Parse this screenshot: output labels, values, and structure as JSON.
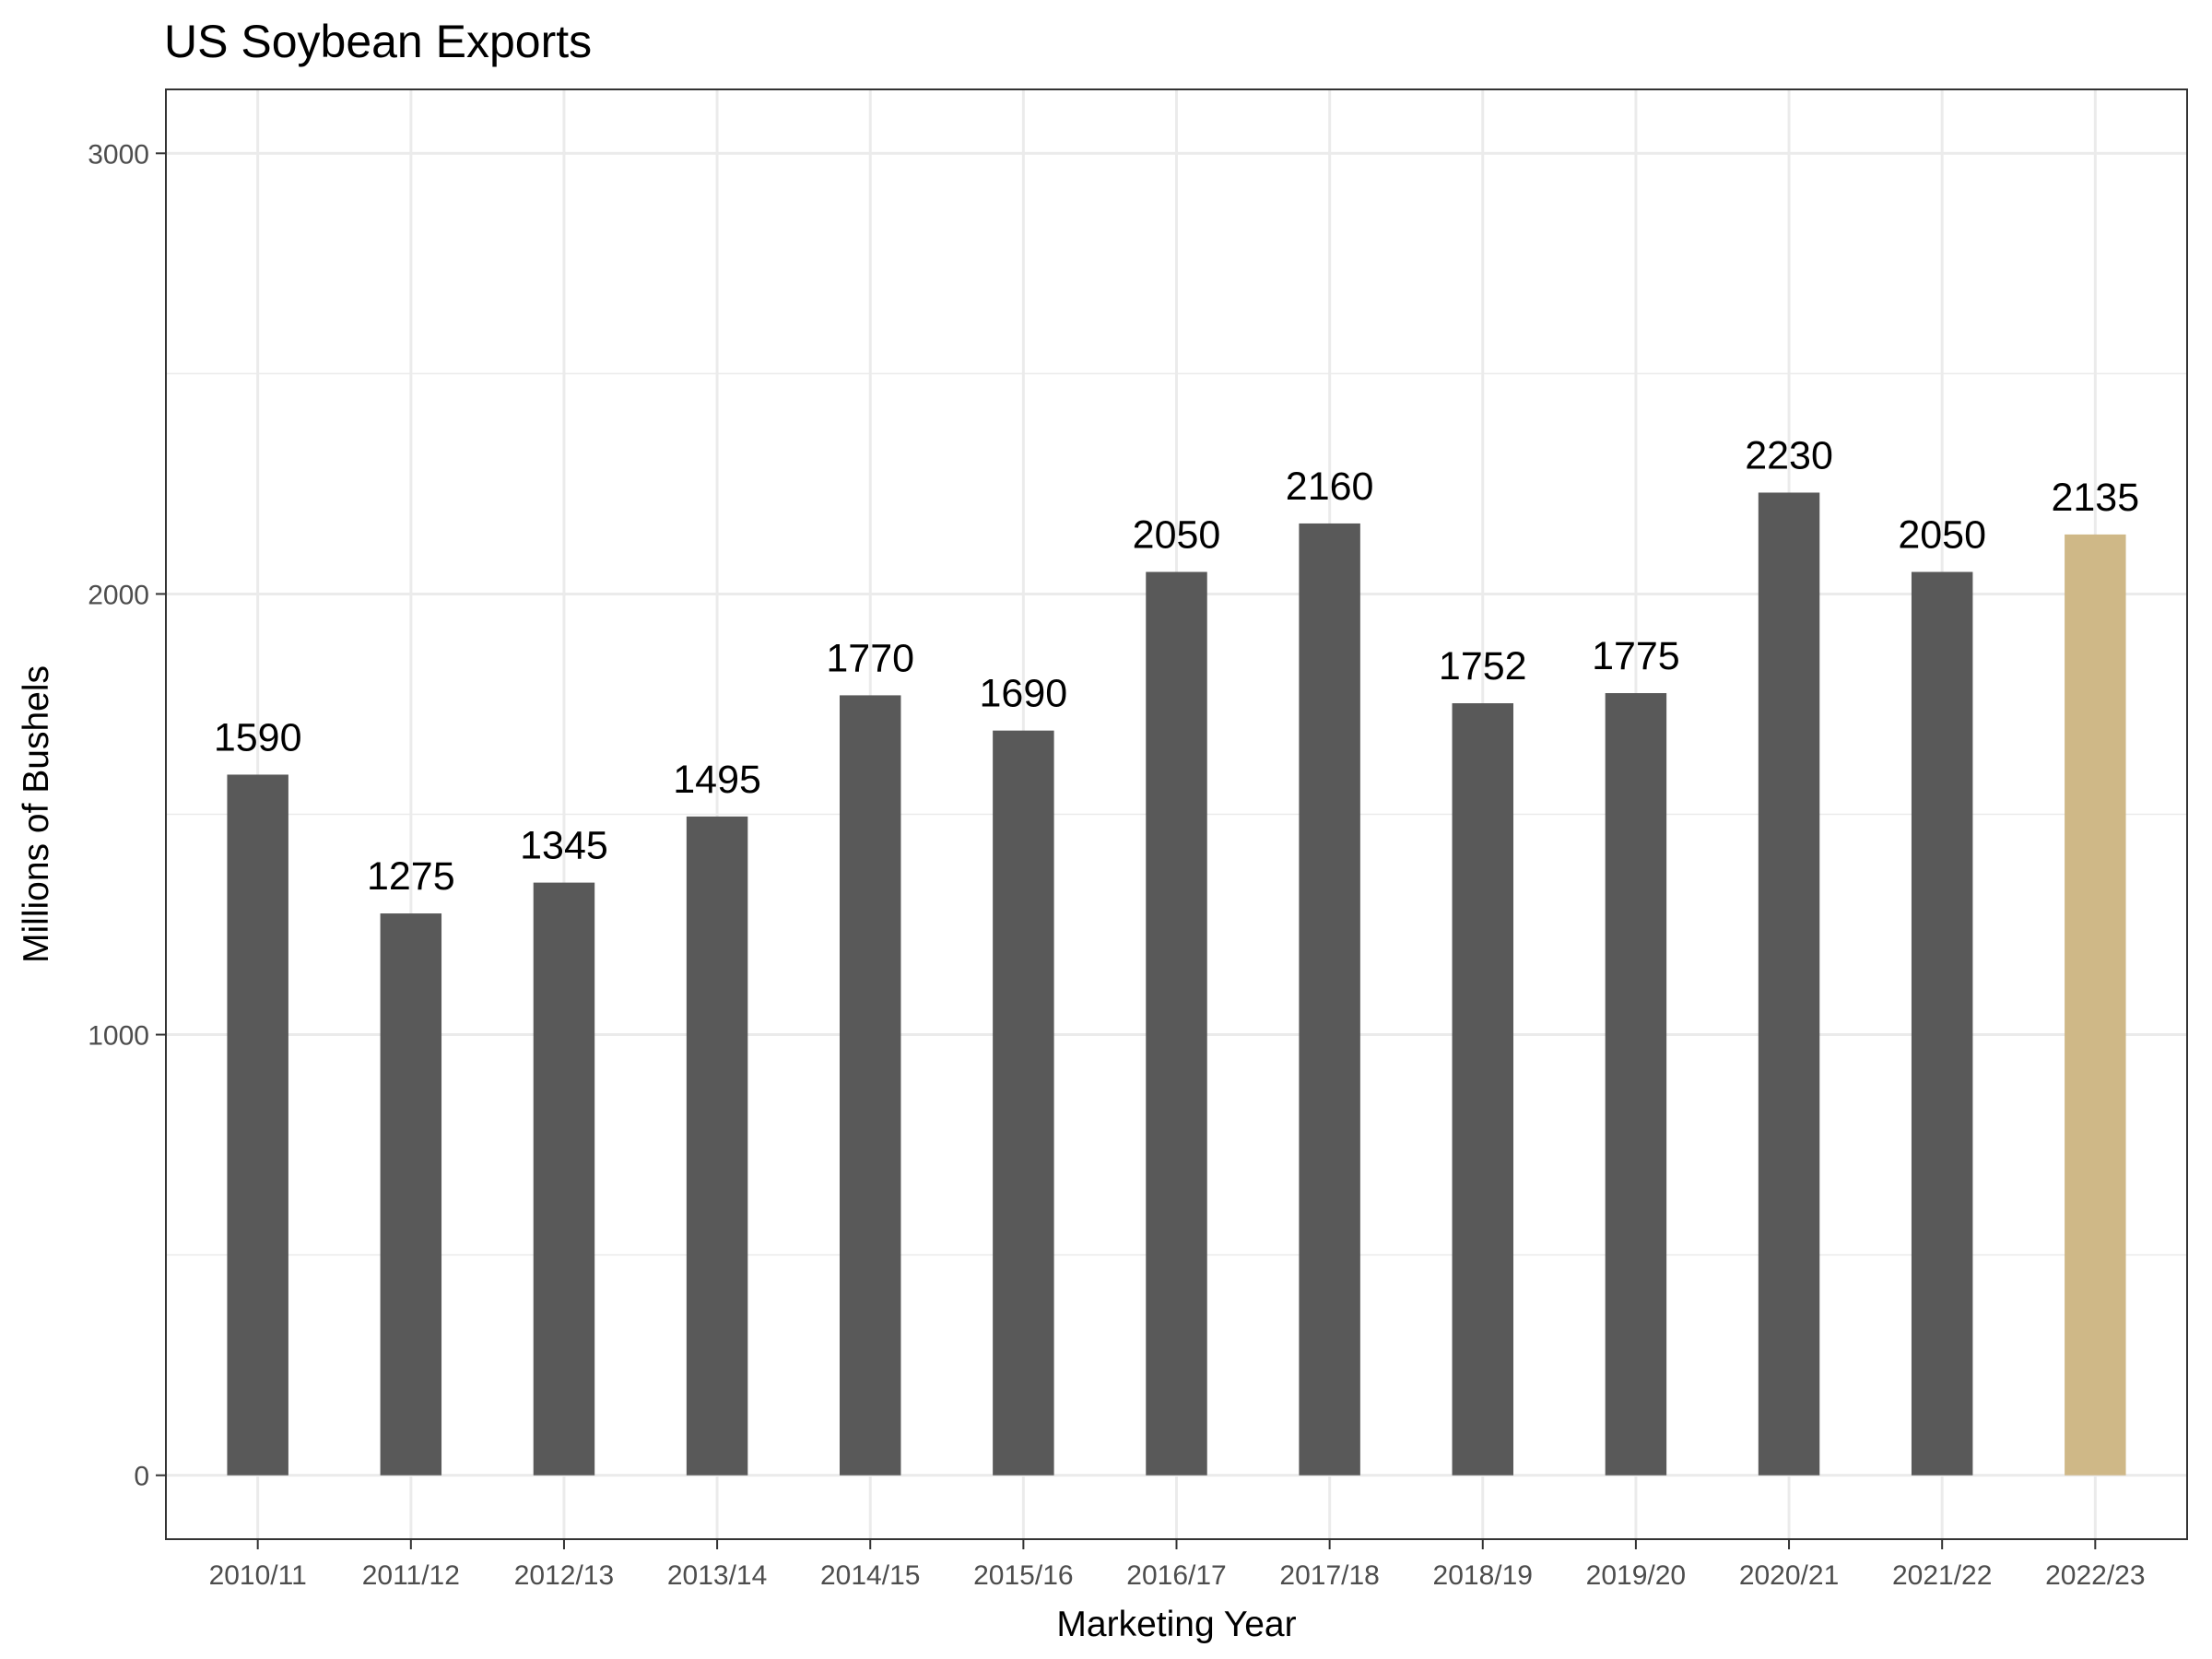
{
  "chart_data": {
    "type": "bar",
    "title": "US Soybean Exports",
    "xlabel": "Marketing Year",
    "ylabel": "Millions of Bushels",
    "categories": [
      "2010/11",
      "2011/12",
      "2012/13",
      "2013/14",
      "2014/15",
      "2015/16",
      "2016/17",
      "2017/18",
      "2018/19",
      "2019/20",
      "2020/21",
      "2021/22",
      "2022/23"
    ],
    "values": [
      1590,
      1275,
      1345,
      1495,
      1770,
      1690,
      2050,
      2160,
      1752,
      1775,
      2230,
      2050,
      2135
    ],
    "data_labels": [
      "1590",
      "1275",
      "1345",
      "1495",
      "1770",
      "1690",
      "2050",
      "2160",
      "1752",
      "1775",
      "2230",
      "2050",
      "2135"
    ],
    "bar_colors": [
      "#595959",
      "#595959",
      "#595959",
      "#595959",
      "#595959",
      "#595959",
      "#595959",
      "#595959",
      "#595959",
      "#595959",
      "#595959",
      "#595959",
      "#cfb887"
    ],
    "ylim": [
      -145,
      3145
    ],
    "yticks": [
      0,
      1000,
      2000,
      3000
    ],
    "ytick_labels": [
      "0",
      "1000",
      "2000",
      "3000"
    ],
    "grid": true,
    "legend": "none"
  }
}
